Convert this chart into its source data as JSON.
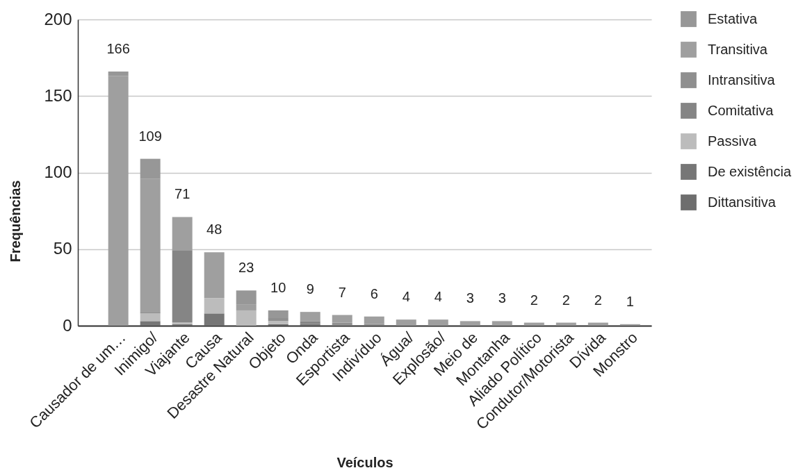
{
  "chart_data": {
    "type": "bar",
    "stacked": true,
    "xlabel": "Veículos",
    "ylabel": "Frequências",
    "categories": [
      "Causador de um…",
      "Inimigo/",
      "Viajante",
      "Causa",
      "Desastre Natural",
      "Objeto",
      "Onda",
      "Esportista",
      "Indivíduo",
      "Água/",
      "Explosão/",
      "Meio de",
      "Montanha",
      "Aliado Político",
      "Condutor/Motorista",
      "Dívida",
      "Monstro"
    ],
    "series": [
      {
        "name": "Dittansitiva",
        "color": "#6e6e6e",
        "values": [
          null,
          null,
          null,
          null,
          null,
          1,
          null,
          null,
          null,
          null,
          null,
          null,
          null,
          null,
          null,
          null,
          null
        ]
      },
      {
        "name": "De existência",
        "color": "#767676",
        "values": [
          null,
          3,
          1,
          8,
          null,
          null,
          1,
          null,
          null,
          null,
          null,
          null,
          null,
          null,
          null,
          null,
          null
        ]
      },
      {
        "name": "Passiva",
        "color": "#bcbcbc",
        "values": [
          null,
          5,
          1,
          10,
          10,
          2,
          null,
          null,
          null,
          null,
          null,
          null,
          null,
          null,
          null,
          null,
          null
        ]
      },
      {
        "name": "Comitativa",
        "color": "#858585",
        "values": [
          null,
          null,
          47,
          null,
          null,
          null,
          2,
          null,
          null,
          null,
          null,
          null,
          null,
          null,
          null,
          null,
          null
        ]
      },
      {
        "name": "Intransitiva",
        "color": "#8f8f8f",
        "values": [
          null,
          1,
          null,
          null,
          null,
          2,
          null,
          2,
          1,
          null,
          null,
          null,
          null,
          null,
          null,
          null,
          null
        ]
      },
      {
        "name": "Transitiva",
        "color": "#9f9f9f",
        "values": [
          163,
          87,
          22,
          30,
          4,
          null,
          6,
          5,
          5,
          4,
          4,
          3,
          3,
          2,
          2,
          2,
          1
        ]
      },
      {
        "name": "Estativa",
        "color": "#979797",
        "values": [
          3,
          13,
          null,
          null,
          9,
          5,
          null,
          null,
          null,
          null,
          null,
          null,
          null,
          null,
          null,
          null,
          null
        ]
      }
    ],
    "totals": [
      "166",
      "109",
      "71",
      "48",
      "23",
      "10",
      "9",
      "7",
      "6",
      "4",
      "4",
      "3",
      "3",
      "2",
      "2",
      "2",
      "1"
    ],
    "ylim": [
      0,
      200
    ],
    "yticks": [
      0,
      50,
      100,
      150,
      200
    ],
    "grid": "y",
    "legend": "top right"
  }
}
